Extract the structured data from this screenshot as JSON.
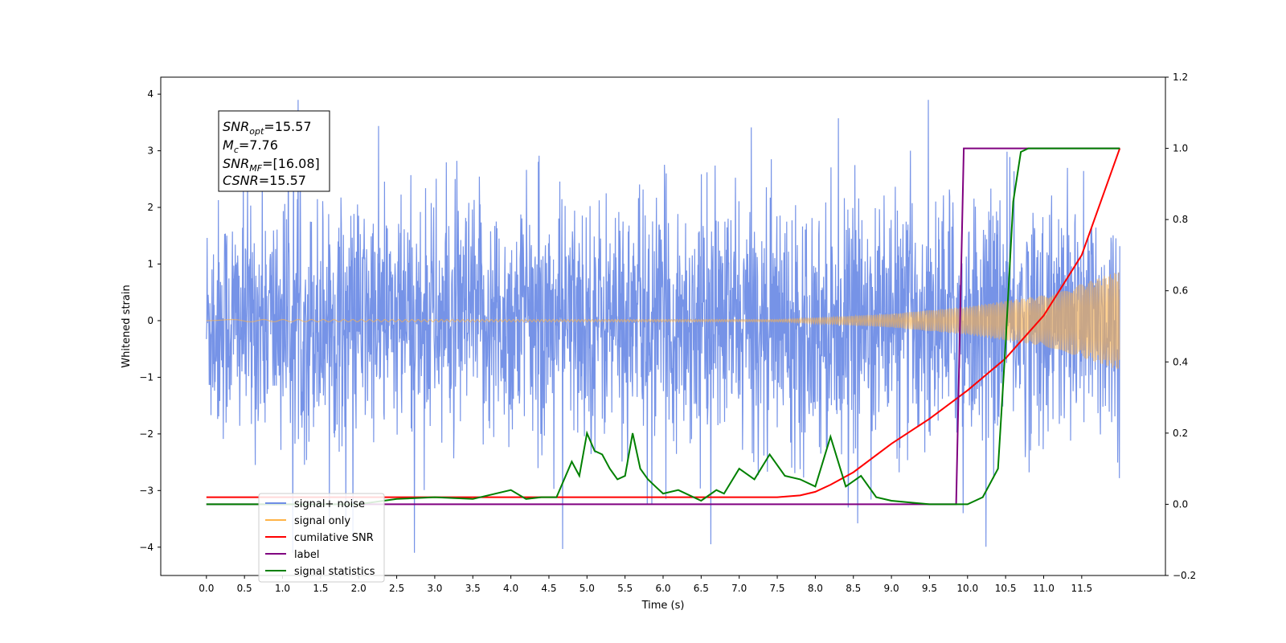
{
  "chart_data": {
    "type": "line",
    "xlabel": "Time (s)",
    "ylabel": "Whitened strain",
    "xlim": [
      -0.6,
      12.6
    ],
    "ylim": [
      -4.5,
      4.3
    ],
    "y2lim": [
      -0.2,
      1.2
    ],
    "x_ticks": [
      "0.0",
      "0.5",
      "1.0",
      "1.5",
      "2.0",
      "2.5",
      "3.0",
      "3.5",
      "4.0",
      "4.5",
      "5.0",
      "5.5",
      "6.0",
      "6.5",
      "7.0",
      "7.5",
      "8.0",
      "8.5",
      "9.0",
      "9.5",
      "10.0",
      "10.5",
      "11.0",
      "11.5"
    ],
    "y_ticks": [
      "4",
      "3",
      "2",
      "1",
      "0",
      "−1",
      "−2",
      "−3",
      "−4"
    ],
    "y2_ticks": [
      "1.2",
      "1.0",
      "0.8",
      "0.6",
      "0.4",
      "0.2",
      "0.0",
      "−0.2"
    ],
    "grid": false,
    "legend_position": "lower-left",
    "annotation": {
      "line1_base": "SNR",
      "line1_sub": "opt",
      "line1_rest": "=15.57",
      "line2_base": "M",
      "line2_sub": "c",
      "line2_rest": "=7.76",
      "line3_base": "SNR",
      "line3_sub": "MF",
      "line3_rest": "=[16.08]",
      "line4_base": "CSNR",
      "line4_rest": "=15.57"
    },
    "colors": {
      "noise": "#6f8de6",
      "signal": "#ffb347",
      "cumulative_snr": "#ff0000",
      "label": "#800080",
      "statistics": "#008000"
    },
    "series": [
      {
        "name": "signal+ noise",
        "axis": "left",
        "t_start": 0.0,
        "t_end": 12.0,
        "amplitude_envelope": 1.6,
        "peaks_min_max": [
          -4.1,
          3.9
        ]
      },
      {
        "name": "signal only",
        "axis": "left",
        "t_start": 0.0,
        "t_end": 12.0,
        "amplitude_by_time": [
          [
            0,
            0.02
          ],
          [
            7.5,
            0.02
          ],
          [
            8.0,
            0.05
          ],
          [
            9.0,
            0.12
          ],
          [
            10.0,
            0.25
          ],
          [
            11.0,
            0.45
          ],
          [
            11.5,
            0.65
          ],
          [
            12.0,
            0.88
          ]
        ]
      },
      {
        "name": "cumilative SNR",
        "axis": "right",
        "x": [
          0,
          1,
          2,
          3,
          4,
          5,
          6,
          7,
          7.5,
          7.8,
          8.0,
          8.2,
          8.5,
          9.0,
          9.5,
          10.0,
          10.5,
          11.0,
          11.5,
          12.0
        ],
        "y": [
          0.02,
          0.02,
          0.02,
          0.02,
          0.02,
          0.02,
          0.02,
          0.02,
          0.02,
          0.025,
          0.035,
          0.055,
          0.09,
          0.17,
          0.24,
          0.32,
          0.41,
          0.53,
          0.7,
          1.0
        ]
      },
      {
        "name": "label",
        "axis": "right",
        "x": [
          0,
          9.85,
          9.95,
          12.0
        ],
        "y": [
          0,
          0,
          1,
          1
        ]
      },
      {
        "name": "signal statistics",
        "axis": "right",
        "x": [
          0,
          2.0,
          2.5,
          3.0,
          3.5,
          4.0,
          4.2,
          4.4,
          4.6,
          4.8,
          4.9,
          5.0,
          5.1,
          5.2,
          5.3,
          5.4,
          5.5,
          5.6,
          5.7,
          5.8,
          5.9,
          6.0,
          6.2,
          6.5,
          6.7,
          6.8,
          7.0,
          7.2,
          7.4,
          7.6,
          7.8,
          8.0,
          8.2,
          8.4,
          8.6,
          8.8,
          9.0,
          9.5,
          10.0,
          10.2,
          10.4,
          10.5,
          10.6,
          10.7,
          10.8,
          12.0
        ],
        "y": [
          0,
          0,
          0.015,
          0.02,
          0.015,
          0.04,
          0.015,
          0.02,
          0.02,
          0.12,
          0.08,
          0.2,
          0.15,
          0.14,
          0.1,
          0.07,
          0.08,
          0.2,
          0.1,
          0.07,
          0.05,
          0.03,
          0.04,
          0.01,
          0.04,
          0.03,
          0.1,
          0.07,
          0.14,
          0.08,
          0.07,
          0.05,
          0.19,
          0.05,
          0.08,
          0.02,
          0.01,
          0.0,
          0.0,
          0.02,
          0.1,
          0.45,
          0.85,
          0.99,
          1.0,
          1.0
        ]
      }
    ]
  }
}
